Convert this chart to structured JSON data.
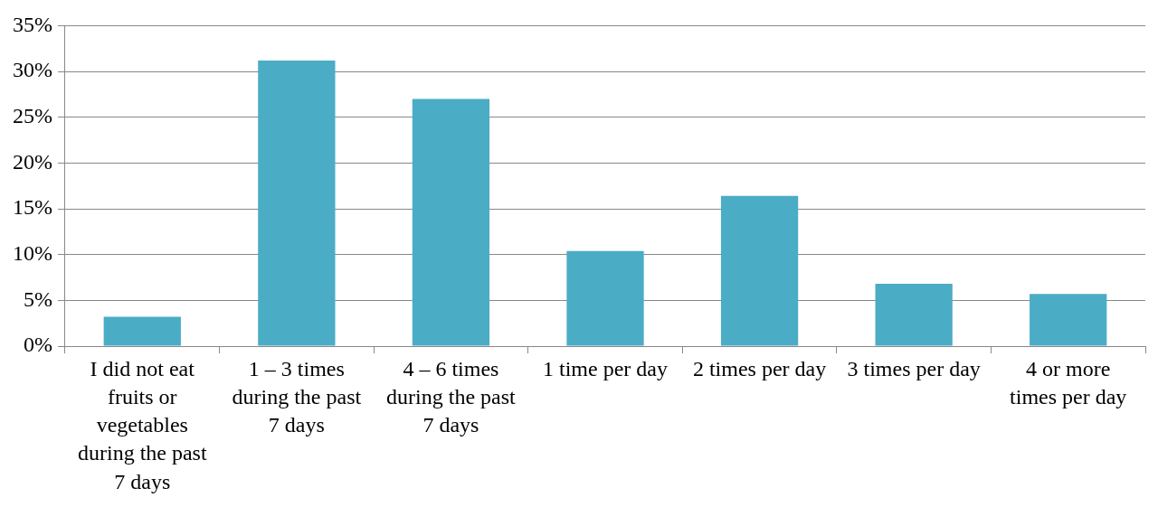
{
  "chart_data": {
    "type": "bar",
    "categories": [
      "I did not eat fruits or vegetables during the past 7 days",
      "1 – 3 times during the past 7 days",
      "4 – 6 times during the past 7 days",
      "1 time per day",
      "2 times per day",
      "3 times per day",
      "4 or more times per day"
    ],
    "values": [
      3.2,
      31.2,
      27.0,
      10.4,
      16.4,
      6.8,
      5.7
    ],
    "color": "#4bacc6",
    "ylim": [
      0,
      35
    ],
    "yticks": [
      {
        "value": 0,
        "label": "0%"
      },
      {
        "value": 5,
        "label": "5%"
      },
      {
        "value": 10,
        "label": "10%"
      },
      {
        "value": 15,
        "label": "15%"
      },
      {
        "value": 20,
        "label": "20%"
      },
      {
        "value": 25,
        "label": "25%"
      },
      {
        "value": 30,
        "label": "30%"
      },
      {
        "value": 35,
        "label": "35%"
      }
    ],
    "grid": "y"
  }
}
